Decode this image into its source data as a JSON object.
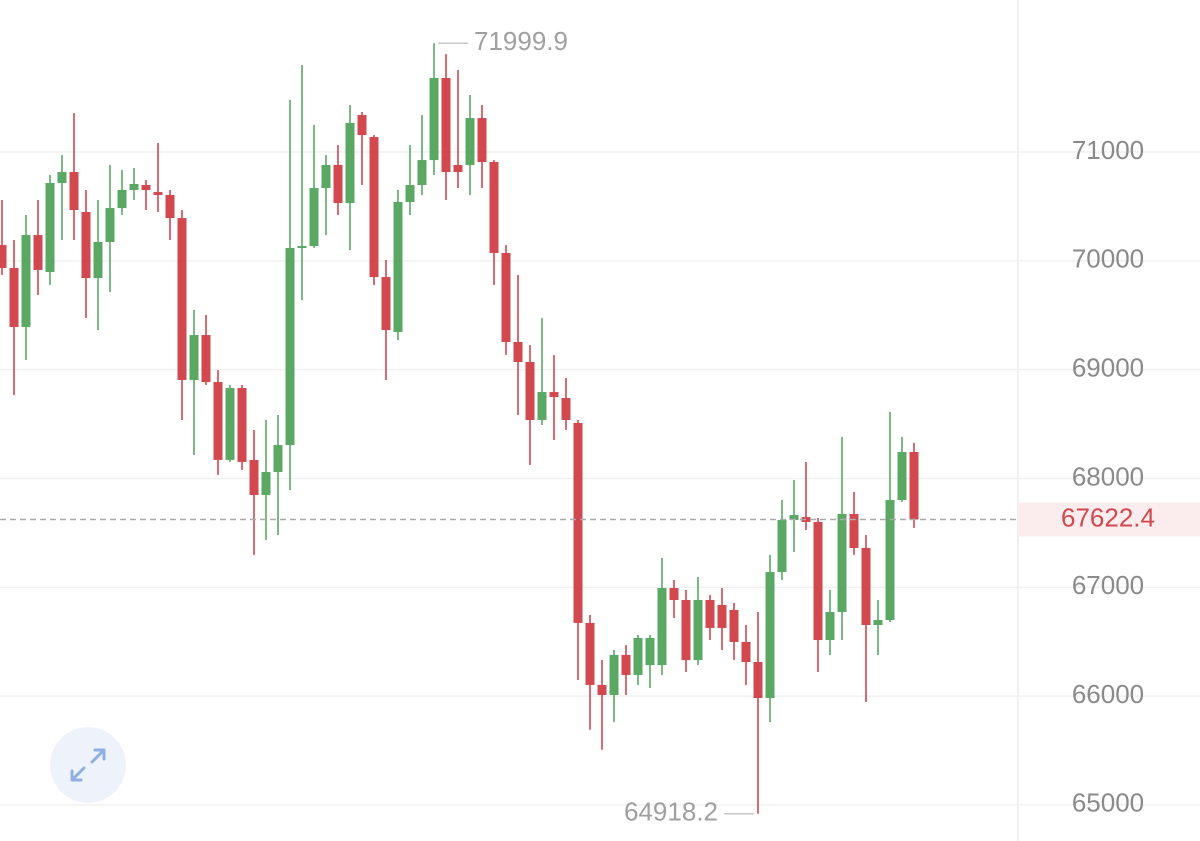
{
  "chart_data": {
    "type": "candlestick",
    "open": [
      70145,
      69934,
      69392,
      70237,
      69897,
      70715,
      70816,
      70449,
      69842,
      70173,
      70485,
      70651,
      70697,
      70632,
      70605,
      70393,
      68905,
      69318,
      68886,
      68170,
      68831,
      68170,
      67848,
      68059,
      68307,
      70118,
      70136,
      70669,
      70881,
      70531,
      71340,
      71138,
      69851,
      69346,
      70541,
      70697,
      70926,
      71680,
      70881,
      70881,
      71312,
      70908,
      70072,
      69254,
      69070,
      68537,
      68794,
      68739,
      68510,
      66672,
      66102,
      66010,
      66378,
      66194,
      66285,
      66285,
      66993,
      66883,
      66331,
      66883,
      66837,
      66791,
      66497,
      66313,
      65982,
      67140,
      67618,
      67645,
      67600,
      66515,
      66773,
      67673,
      67361,
      66653,
      66699,
      67802,
      68243
    ],
    "high": [
      70559,
      70191,
      70421,
      70559,
      70789,
      70972,
      71358,
      70651,
      70559,
      70881,
      70835,
      70853,
      70743,
      71083,
      70651,
      70467,
      69548,
      69502,
      68997,
      68859,
      68859,
      68446,
      68537,
      68583,
      71478,
      71800,
      71248,
      70972,
      71064,
      71432,
      71368,
      71156,
      70008,
      70651,
      71064,
      71340,
      71999.9,
      71900,
      71754,
      71524,
      71432,
      70926,
      70145,
      69870,
      69226,
      69474,
      69134,
      68923,
      68537,
      66745,
      66331,
      66424,
      66469,
      66561,
      66561,
      67269,
      67067,
      66975,
      67094,
      66929,
      66993,
      66856,
      66653,
      66773,
      67297,
      67802,
      67986,
      68152,
      67636,
      66975,
      68381,
      67876,
      67480,
      66883,
      68611,
      68381,
      68326
    ],
    "low": [
      69870,
      68767,
      69088,
      69686,
      69778,
      70191,
      70191,
      69474,
      69364,
      69713,
      70421,
      70559,
      70467,
      70449,
      70191,
      68537,
      68215,
      68859,
      68032,
      68152,
      68078,
      67297,
      67434,
      67480,
      67894,
      69640,
      70118,
      70237,
      70421,
      70099,
      70697,
      69778,
      68905,
      69272,
      70421,
      70605,
      70789,
      70559,
      70669,
      70605,
      70669,
      69778,
      69135,
      68583,
      68124,
      68491,
      68354,
      68446,
      66148,
      65690,
      65507,
      65762,
      66010,
      66102,
      66074,
      66194,
      66718,
      66221,
      66285,
      66515,
      66423,
      66331,
      66102,
      64918.2,
      65762,
      67067,
      67324,
      67526,
      66221,
      66377,
      66515,
      67297,
      65946,
      66377,
      66681,
      67784,
      67545
    ],
    "close": [
      69934,
      69392,
      70237,
      69916,
      70715,
      70816,
      70467,
      69842,
      70173,
      70485,
      70651,
      70706,
      70651,
      70605,
      70393,
      68905,
      69318,
      68886,
      68170,
      68831,
      68152,
      67848,
      68059,
      68307,
      70118,
      70136,
      70669,
      70881,
      70531,
      71267,
      71156,
      69851,
      69364,
      70541,
      70697,
      70926,
      71680,
      70816,
      70816,
      71312,
      70908,
      70072,
      69254,
      69070,
      68537,
      68794,
      68748,
      68537,
      66672,
      66102,
      66010,
      66378,
      66194,
      66534,
      66534,
      66993,
      66883,
      66331,
      66883,
      66626,
      66626,
      66497,
      66313,
      65982,
      67140,
      67618,
      67664,
      67600,
      66515,
      66773,
      67673,
      67361,
      66653,
      66699,
      67802,
      68243,
      67622.4
    ],
    "up_color": "#5aa864",
    "down_color": "#d2484f",
    "ylim": [
      64668,
      72397
    ],
    "yticks": [
      65000,
      66000,
      67000,
      68000,
      69000,
      70000,
      71000
    ],
    "grid": true
  }
}
